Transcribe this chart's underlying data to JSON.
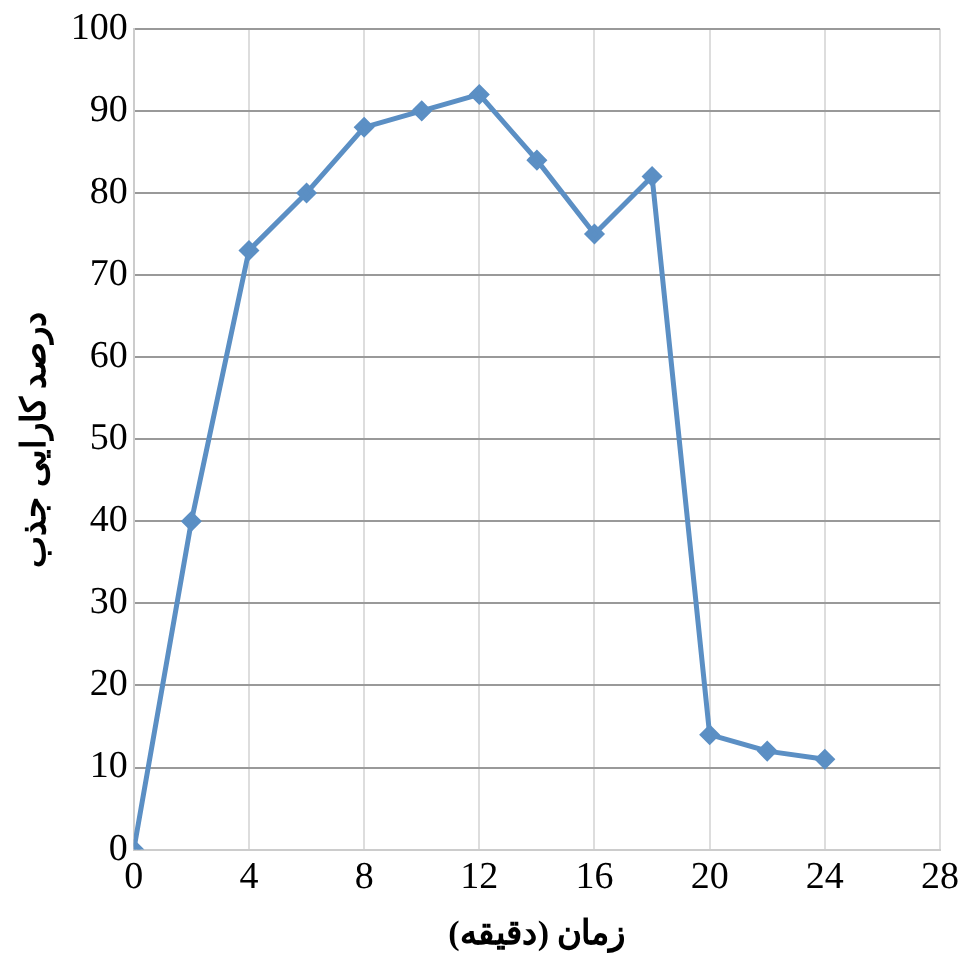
{
  "chart_data": {
    "type": "line",
    "xlabel": "زمان (دقیقه)",
    "ylabel": "درصد کارایی جذب",
    "x": [
      0,
      2,
      4,
      6,
      8,
      10,
      12,
      14,
      16,
      18,
      20,
      22,
      24
    ],
    "series": [
      {
        "color": "#5b8fc4",
        "values": [
          0,
          40,
          73,
          80,
          88,
          90,
          92,
          84,
          75,
          82,
          14,
          12,
          11
        ]
      }
    ],
    "xlim": [
      0,
      28
    ],
    "xticks": [
      0,
      4,
      8,
      12,
      16,
      20,
      24,
      28
    ],
    "ylim": [
      0,
      100
    ],
    "yticks": [
      0,
      10,
      20,
      30,
      40,
      50,
      60,
      70,
      80,
      90,
      100
    ],
    "grid": true,
    "legend": false,
    "marker": "diamond",
    "line_style": "solid"
  }
}
